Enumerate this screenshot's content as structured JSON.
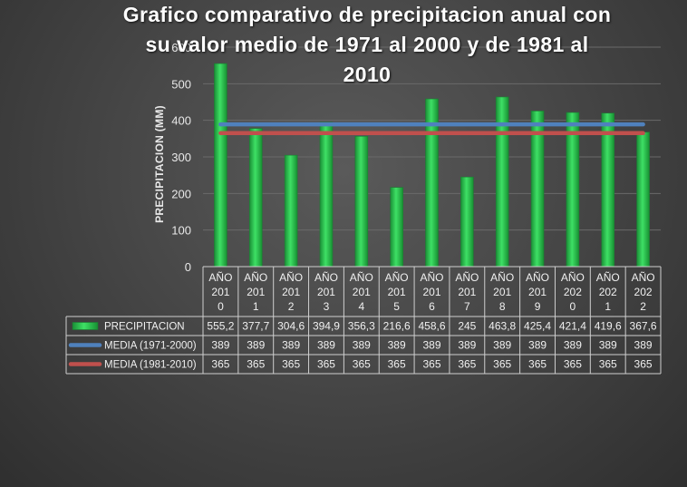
{
  "chart_data": {
    "type": "bar",
    "title": "Grafico comparativo de precipitacion anual  con\nsu valor medio de 1971 al 2000 y de 1981 al\n2010",
    "ylabel": "PRECIPITACION  (MM)",
    "xlabel": "",
    "ylim": [
      0,
      600
    ],
    "yticks": [
      0,
      100,
      200,
      300,
      400,
      500,
      600
    ],
    "categories": [
      [
        "AÑO",
        "201",
        "0"
      ],
      [
        "AÑO",
        "201",
        "1"
      ],
      [
        "AÑO",
        "201",
        "2"
      ],
      [
        "AÑO",
        "201",
        "3"
      ],
      [
        "AÑO",
        "201",
        "4"
      ],
      [
        "AÑO",
        "201",
        "5"
      ],
      [
        "AÑO",
        "201",
        "6"
      ],
      [
        "AÑO",
        "201",
        "7"
      ],
      [
        "AÑO",
        "201",
        "8"
      ],
      [
        "AÑO",
        "201",
        "9"
      ],
      [
        "AÑO",
        "202",
        "0"
      ],
      [
        "AÑO",
        "202",
        "1"
      ],
      [
        "AÑO",
        "202",
        "2"
      ]
    ],
    "series": [
      {
        "name": "PRECIPITACION",
        "kind": "bar",
        "color": "#2fc24f",
        "values": [
          555.2,
          377.7,
          304.6,
          394.9,
          356.3,
          216.6,
          458.6,
          245,
          463.8,
          425.4,
          421.4,
          419.6,
          367.6
        ],
        "labels": [
          "555,2",
          "377,7",
          "304,6",
          "394,9",
          "356,3",
          "216,6",
          "458,6",
          "245",
          "463,8",
          "425,4",
          "421,4",
          "419,6",
          "367,6"
        ]
      },
      {
        "name": "MEDIA (1971-2000)",
        "kind": "line",
        "color": "#4f81bd",
        "values": [
          389,
          389,
          389,
          389,
          389,
          389,
          389,
          389,
          389,
          389,
          389,
          389,
          389
        ],
        "labels": [
          "389",
          "389",
          "389",
          "389",
          "389",
          "389",
          "389",
          "389",
          "389",
          "389",
          "389",
          "389",
          "389"
        ]
      },
      {
        "name": "MEDIA (1981-2010)",
        "kind": "line",
        "color": "#c0504d",
        "values": [
          365,
          365,
          365,
          365,
          365,
          365,
          365,
          365,
          365,
          365,
          365,
          365,
          365
        ],
        "labels": [
          "365",
          "365",
          "365",
          "365",
          "365",
          "365",
          "365",
          "365",
          "365",
          "365",
          "365",
          "365",
          "365"
        ]
      }
    ],
    "grid": true,
    "legend": "data-table-left"
  }
}
